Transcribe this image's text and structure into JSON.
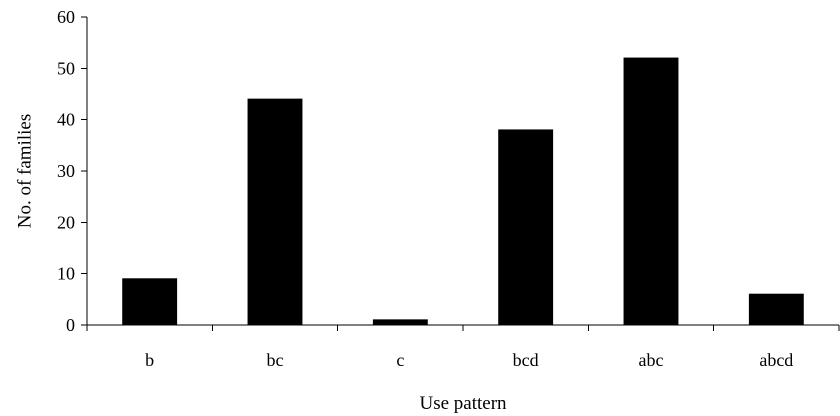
{
  "chart_data": {
    "type": "bar",
    "title": "",
    "xlabel": "Use pattern",
    "ylabel": "No. of  families",
    "categories": [
      "b",
      "bc",
      "c",
      "bcd",
      "abc",
      "abcd"
    ],
    "values": [
      9,
      44,
      1,
      38,
      52,
      6
    ],
    "ylim": [
      0,
      60
    ],
    "yticks": [
      0,
      10,
      20,
      30,
      40,
      50,
      60
    ],
    "ytick_labels": [
      "0",
      "10",
      "20",
      "30",
      "40",
      "50",
      "60"
    ],
    "grid": false,
    "legend": "none",
    "bar_color": "#000000"
  }
}
